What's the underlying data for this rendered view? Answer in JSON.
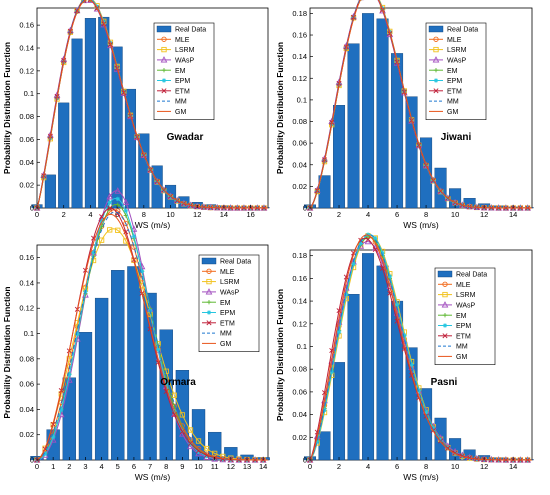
{
  "legend_labels": [
    "Real Data",
    "MLE",
    "LSRM",
    "WAsP",
    "EM",
    "EPM",
    "ETM",
    "MM",
    "GM"
  ],
  "series_colors": {
    "Real Data": "#1f6fbf",
    "MLE": "#f26b1d",
    "LSRM": "#f2c21d",
    "WAsP": "#a24fbf",
    "EM": "#5fb833",
    "EPM": "#26c6e0",
    "ETM": "#c0213a",
    "MM": "#1f77d0",
    "GM": "#e8541a"
  },
  "chart_data": [
    {
      "type": "bar",
      "title": "Gwadar",
      "xlabel": "WS (m/s)",
      "ylabel": "Probability Distribution Function",
      "xlim": [
        0,
        17.3
      ],
      "ylim": [
        0,
        0.175
      ],
      "xticks": [
        0,
        2,
        4,
        6,
        8,
        10,
        12,
        14,
        16
      ],
      "yticks": [
        0,
        0.02,
        0.04,
        0.06,
        0.08,
        0.1,
        0.12,
        0.14,
        0.16
      ],
      "x": [
        0,
        1,
        2,
        3,
        4,
        5,
        6,
        7,
        8,
        9,
        10,
        11,
        12,
        13,
        14,
        15,
        16,
        17
      ],
      "values": [
        0.003,
        0.029,
        0.092,
        0.148,
        0.166,
        0.167,
        0.141,
        0.104,
        0.065,
        0.037,
        0.02,
        0.01,
        0.005,
        0.003,
        0.002,
        0.001,
        0.001,
        0.0005
      ],
      "weibull_fits": [
        {
          "name": "MLE",
          "k": 2.2,
          "c": 5.0
        },
        {
          "name": "LSRM",
          "k": 2.22,
          "c": 5.0
        },
        {
          "name": "WAsP",
          "k": 2.18,
          "c": 4.98
        },
        {
          "name": "EM",
          "k": 2.2,
          "c": 5.01
        },
        {
          "name": "EPM",
          "k": 2.21,
          "c": 5.0
        },
        {
          "name": "ETM",
          "k": 2.19,
          "c": 4.99
        },
        {
          "name": "MM",
          "k": 2.2,
          "c": 5.0
        },
        {
          "name": "GM",
          "k": 2.2,
          "c": 5.02
        }
      ]
    },
    {
      "type": "bar",
      "title": "Jiwani",
      "xlabel": "WS (m/s)",
      "ylabel": "Probability Distribution Function",
      "xlim": [
        0,
        15.3
      ],
      "ylim": [
        0,
        0.185
      ],
      "xticks": [
        0,
        2,
        4,
        6,
        8,
        10,
        12,
        14
      ],
      "yticks": [
        0,
        0.02,
        0.04,
        0.06,
        0.08,
        0.1,
        0.12,
        0.14,
        0.16,
        0.18
      ],
      "x": [
        0,
        1,
        2,
        3,
        4,
        5,
        6,
        7,
        8,
        9,
        10,
        11,
        12,
        13,
        14,
        15
      ],
      "values": [
        0.003,
        0.03,
        0.095,
        0.152,
        0.18,
        0.175,
        0.143,
        0.103,
        0.065,
        0.037,
        0.018,
        0.009,
        0.004,
        0.002,
        0.001,
        0.0005
      ],
      "weibull_fits": [
        {
          "name": "MLE",
          "k": 2.5,
          "c": 5.0
        },
        {
          "name": "LSRM",
          "k": 2.52,
          "c": 5.0
        },
        {
          "name": "WAsP",
          "k": 2.48,
          "c": 4.98
        },
        {
          "name": "EM",
          "k": 2.5,
          "c": 5.01
        },
        {
          "name": "EPM",
          "k": 2.51,
          "c": 5.0
        },
        {
          "name": "ETM",
          "k": 2.49,
          "c": 4.99
        },
        {
          "name": "MM",
          "k": 2.5,
          "c": 5.0
        },
        {
          "name": "GM",
          "k": 2.5,
          "c": 5.02
        }
      ]
    },
    {
      "type": "bar",
      "title": "Ormara",
      "xlabel": "WS (m/s)",
      "ylabel": "Probability Distribution Function",
      "xlim": [
        0,
        14.3
      ],
      "ylim": [
        0,
        0.17
      ],
      "xticks": [
        0,
        1,
        2,
        3,
        4,
        5,
        6,
        7,
        8,
        9,
        10,
        11,
        12,
        13,
        14
      ],
      "yticks": [
        0,
        0.02,
        0.04,
        0.06,
        0.08,
        0.1,
        0.12,
        0.14,
        0.16
      ],
      "x": [
        0,
        1,
        2,
        3,
        4,
        5,
        6,
        7,
        8,
        9,
        10,
        11,
        12,
        13,
        14
      ],
      "values": [
        0.003,
        0.024,
        0.065,
        0.101,
        0.128,
        0.15,
        0.153,
        0.132,
        0.103,
        0.071,
        0.04,
        0.022,
        0.01,
        0.004,
        0.002
      ],
      "weibull_fits": [
        {
          "name": "MLE",
          "k": 2.8,
          "c": 5.6
        },
        {
          "name": "LSRM",
          "k": 2.6,
          "c": 5.7
        },
        {
          "name": "WAsP",
          "k": 3.05,
          "c": 5.6
        },
        {
          "name": "EM",
          "k": 2.9,
          "c": 5.65
        },
        {
          "name": "EPM",
          "k": 2.95,
          "c": 5.6
        },
        {
          "name": "ETM",
          "k": 2.7,
          "c": 5.4
        },
        {
          "name": "MM",
          "k": 2.8,
          "c": 5.65
        },
        {
          "name": "GM",
          "k": 2.65,
          "c": 5.45
        }
      ]
    },
    {
      "type": "bar",
      "title": "Pasni",
      "xlabel": "WS (m/s)",
      "ylabel": "Probability Distribution Function",
      "xlim": [
        0,
        15.3
      ],
      "ylim": [
        0,
        0.185
      ],
      "xticks": [
        0,
        2,
        4,
        6,
        8,
        10,
        12,
        14
      ],
      "yticks": [
        0,
        0.02,
        0.04,
        0.06,
        0.08,
        0.1,
        0.12,
        0.14,
        0.16,
        0.18
      ],
      "x": [
        0,
        1,
        2,
        3,
        4,
        5,
        6,
        7,
        8,
        9,
        10,
        11,
        12,
        13,
        14,
        15
      ],
      "values": [
        0.003,
        0.025,
        0.086,
        0.146,
        0.182,
        0.171,
        0.14,
        0.099,
        0.063,
        0.037,
        0.019,
        0.009,
        0.004,
        0.002,
        0.001,
        0.0005
      ],
      "weibull_fits": [
        {
          "name": "MLE",
          "k": 2.42,
          "c": 5.0
        },
        {
          "name": "LSRM",
          "k": 2.5,
          "c": 5.1
        },
        {
          "name": "WAsP",
          "k": 2.35,
          "c": 5.0
        },
        {
          "name": "EM",
          "k": 2.45,
          "c": 5.05
        },
        {
          "name": "EPM",
          "k": 2.48,
          "c": 5.05
        },
        {
          "name": "ETM",
          "k": 2.3,
          "c": 4.85
        },
        {
          "name": "MM",
          "k": 2.45,
          "c": 5.0
        },
        {
          "name": "GM",
          "k": 2.38,
          "c": 4.9
        }
      ]
    }
  ]
}
